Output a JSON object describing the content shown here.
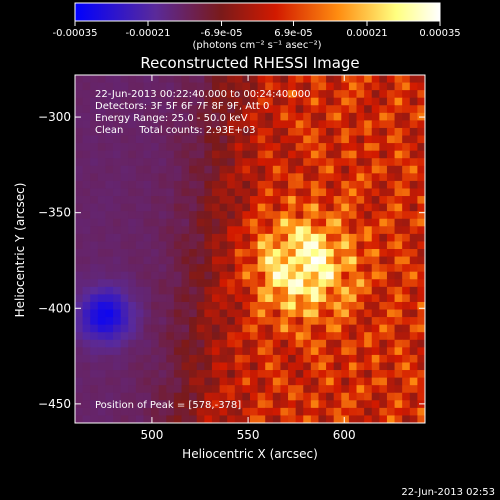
{
  "chart_data": {
    "type": "heatmap",
    "title": "Reconstructed RHESSI Image",
    "xlabel": "Heliocentric X (arcsec)",
    "ylabel": "Heliocentric Y (arcsec)",
    "xlim": [
      460,
      642
    ],
    "ylim": [
      -460,
      -278
    ],
    "x_ticks": [
      500,
      550,
      600
    ],
    "y_ticks": [
      -300,
      -350,
      -400,
      -450
    ],
    "colorbar": {
      "label": "(photons cm⁻² s⁻¹ asec⁻²)",
      "ticks": [
        "-0.00035",
        "-0.00021",
        "-6.9e-05",
        "6.9e-05",
        "0.00021",
        "0.00035"
      ],
      "range": [
        -0.00035,
        0.00035
      ],
      "colors": [
        "#0000ff",
        "#5a2a9a",
        "#7a1a1a",
        "#d21a00",
        "#ff8c10",
        "#ffff80",
        "#ffffff"
      ]
    },
    "annotations": [
      "22-Jun-2013 00:22:40.000 to 00:24:40.000",
      "Detectors: 3F 5F 6F 7F 8F 9F, Att 0",
      "Energy Range: 25.0 - 50.0 keV",
      "Clean     Total counts: 2.93E+03"
    ],
    "peak_label": "Position of Peak = [578,-378]",
    "peak": [
      578,
      -378
    ],
    "secondary_min": [
      476,
      -404
    ],
    "footer_timestamp": "22-Jun-2013 02:53"
  }
}
